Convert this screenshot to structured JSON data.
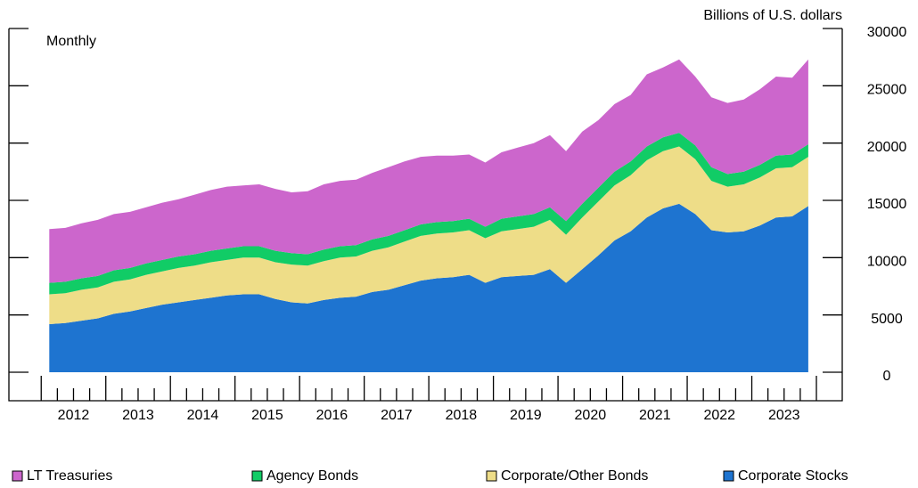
{
  "chart_data": {
    "type": "stacked-area",
    "y_label": "Billions of U.S. dollars",
    "subtitle": "Monthly",
    "x": [
      2012.125,
      2012.375,
      2012.625,
      2012.875,
      2013.125,
      2013.375,
      2013.625,
      2013.875,
      2014.125,
      2014.375,
      2014.625,
      2014.875,
      2015.125,
      2015.375,
      2015.625,
      2015.875,
      2016.125,
      2016.375,
      2016.625,
      2016.875,
      2017.125,
      2017.375,
      2017.625,
      2017.875,
      2018.125,
      2018.375,
      2018.625,
      2018.875,
      2019.125,
      2019.375,
      2019.625,
      2019.875,
      2020.125,
      2020.375,
      2020.625,
      2020.875,
      2021.125,
      2021.375,
      2021.625,
      2021.875,
      2022.125,
      2022.375,
      2022.625,
      2022.875,
      2023.125,
      2023.375,
      2023.625,
      2023.875
    ],
    "series": [
      {
        "name": "LT Treasuries",
        "color": "#cc66cc",
        "values": [
          4700,
          4700,
          4800,
          4900,
          4900,
          4900,
          4900,
          5000,
          5000,
          5200,
          5300,
          5400,
          5300,
          5400,
          5400,
          5300,
          5500,
          5700,
          5700,
          5700,
          5800,
          6000,
          6000,
          5900,
          5800,
          5700,
          5600,
          5600,
          5800,
          6000,
          6200,
          6300,
          6100,
          6300,
          5900,
          5900,
          5800,
          6300,
          6100,
          6400,
          6000,
          6100,
          6200,
          6300,
          6600,
          6900,
          6700,
          7400
        ]
      },
      {
        "name": "Agency Bonds",
        "color": "#11cc66",
        "values": [
          1000,
          1000,
          1000,
          1000,
          1000,
          1000,
          1000,
          1000,
          1000,
          1000,
          1000,
          1000,
          1000,
          1000,
          1000,
          1000,
          1000,
          1000,
          1000,
          1000,
          1000,
          1000,
          1000,
          1000,
          1000,
          1000,
          1000,
          1000,
          1100,
          1100,
          1100,
          1100,
          1200,
          1200,
          1200,
          1200,
          1200,
          1200,
          1200,
          1200,
          1200,
          1200,
          1100,
          1100,
          1100,
          1100,
          1100,
          1100
        ]
      },
      {
        "name": "Corporate/Other Bonds",
        "color": "#eedd88",
        "values": [
          2600,
          2600,
          2700,
          2700,
          2800,
          2800,
          2900,
          2900,
          3000,
          3000,
          3100,
          3100,
          3200,
          3200,
          3200,
          3300,
          3300,
          3400,
          3500,
          3500,
          3600,
          3700,
          3800,
          3900,
          3900,
          3900,
          3900,
          3900,
          4000,
          4100,
          4200,
          4300,
          4200,
          4500,
          4700,
          4800,
          4900,
          5000,
          5000,
          5000,
          4800,
          4300,
          4000,
          4100,
          4200,
          4300,
          4300,
          4300
        ]
      },
      {
        "name": "Corporate Stocks",
        "color": "#1e74d0",
        "values": [
          4200,
          4300,
          4500,
          4700,
          5100,
          5300,
          5600,
          5900,
          6100,
          6300,
          6500,
          6700,
          6800,
          6800,
          6400,
          6100,
          6000,
          6300,
          6500,
          6600,
          7000,
          7200,
          7600,
          8000,
          8200,
          8300,
          8500,
          7800,
          8300,
          8400,
          8500,
          9000,
          7800,
          9000,
          10200,
          11500,
          12300,
          13500,
          14300,
          14700,
          13800,
          12400,
          12200,
          12300,
          12800,
          13500,
          13600,
          14500
        ]
      }
    ],
    "xlim": [
      2011.5,
      2024.4
    ],
    "xticks": [
      {
        "value": 2012.5,
        "label": "2012"
      },
      {
        "value": 2013.5,
        "label": "2013"
      },
      {
        "value": 2014.5,
        "label": "2014"
      },
      {
        "value": 2015.5,
        "label": "2015"
      },
      {
        "value": 2016.5,
        "label": "2016"
      },
      {
        "value": 2017.5,
        "label": "2017"
      },
      {
        "value": 2018.5,
        "label": "2018"
      },
      {
        "value": 2019.5,
        "label": "2019"
      },
      {
        "value": 2020.5,
        "label": "2020"
      },
      {
        "value": 2021.5,
        "label": "2021"
      },
      {
        "value": 2022.5,
        "label": "2022"
      },
      {
        "value": 2023.5,
        "label": "2023"
      }
    ],
    "ylim": [
      0,
      30000
    ],
    "yticks": [
      0,
      5000,
      10000,
      15000,
      20000,
      25000,
      30000
    ],
    "stacked": true
  }
}
